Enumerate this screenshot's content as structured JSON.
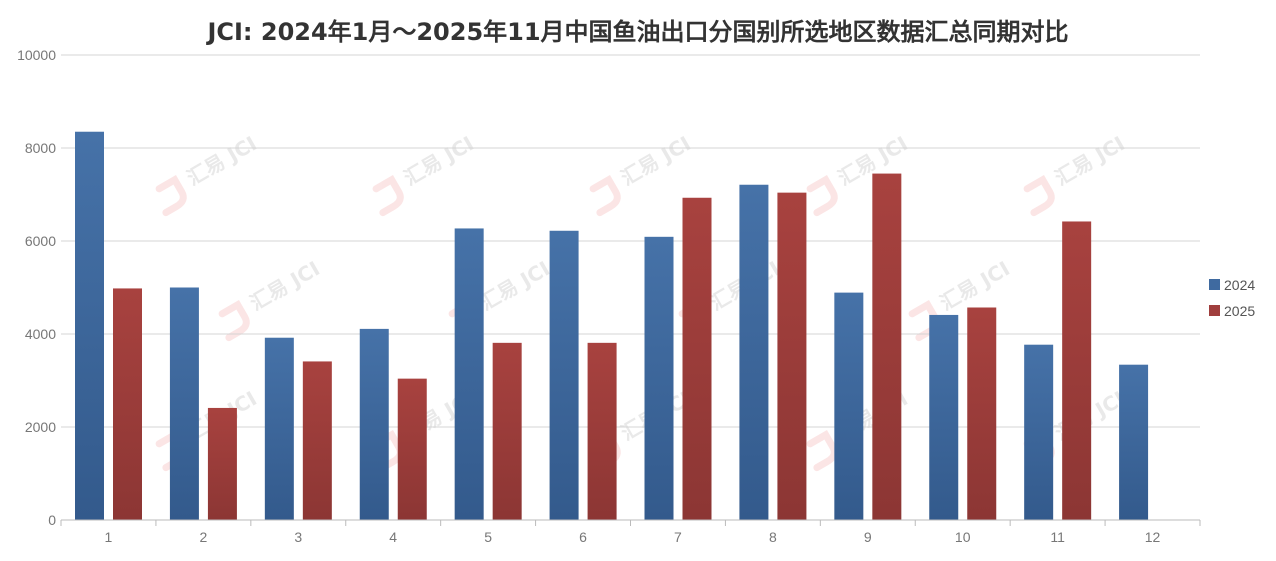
{
  "chart_data": {
    "type": "bar",
    "title": "JCI: 2024年1月～2025年11月中国鱼油出口分国别所选地区数据汇总同期对比",
    "categories": [
      "1",
      "2",
      "3",
      "4",
      "5",
      "6",
      "7",
      "8",
      "9",
      "10",
      "11",
      "12"
    ],
    "series": [
      {
        "name": "2024",
        "color": "#3f6aa0",
        "values": [
          8350,
          5000,
          3920,
          4110,
          6270,
          6220,
          6090,
          7210,
          4890,
          4410,
          3770,
          3340
        ]
      },
      {
        "name": "2025",
        "color": "#a03e3d",
        "values": [
          4980,
          2410,
          3410,
          3040,
          3810,
          3810,
          6930,
          7040,
          7450,
          4570,
          6420,
          null
        ]
      }
    ],
    "y_ticks": [
      "0",
      "2000",
      "4000",
      "6000",
      "8000",
      "10000"
    ],
    "ylim": [
      0,
      10000
    ],
    "xlabel": "",
    "ylabel": "",
    "grid": true,
    "legend_position": "right",
    "watermark_text": "汇易 JCI"
  }
}
